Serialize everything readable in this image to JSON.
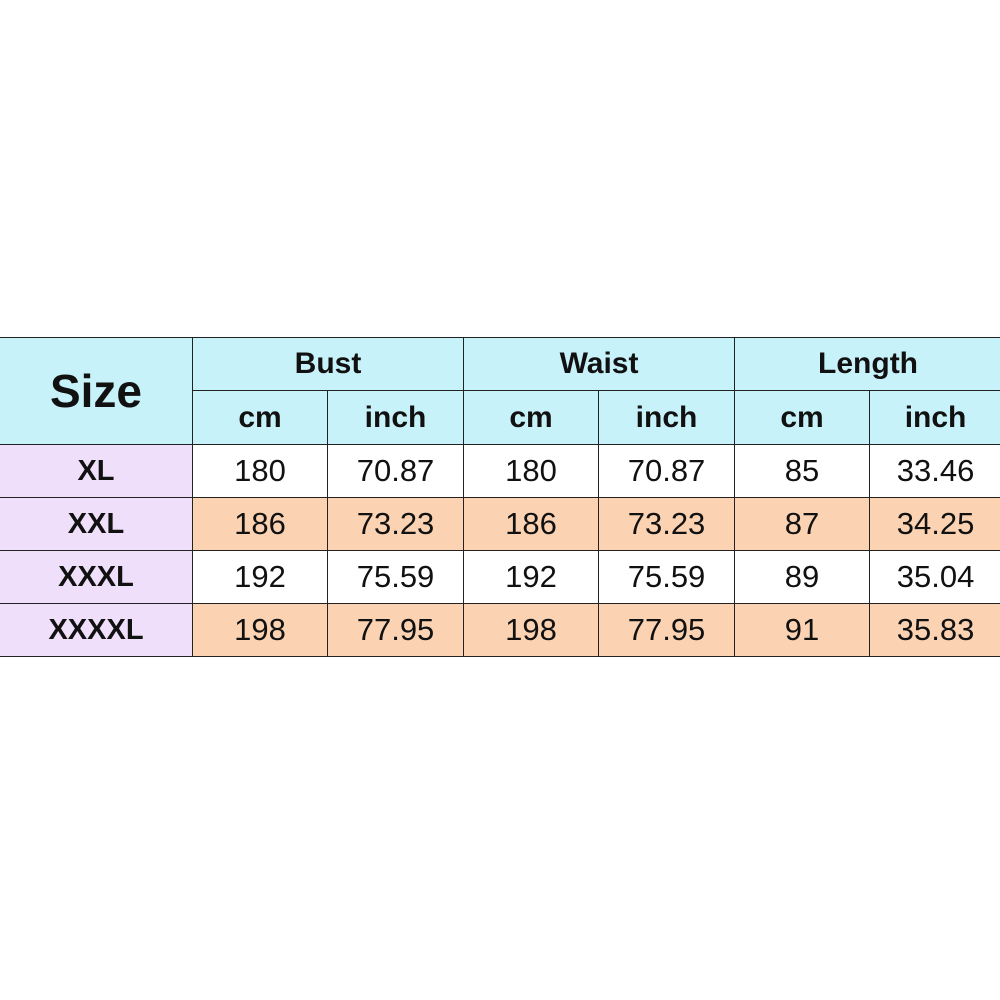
{
  "table": {
    "size_header": "Size",
    "groups": [
      "Bust",
      "Waist",
      "Length"
    ],
    "units": [
      "cm",
      "inch",
      "cm",
      "inch",
      "cm",
      "inch"
    ],
    "rows": [
      {
        "size": "XL",
        "values": [
          "180",
          "70.87",
          "180",
          "70.87",
          "85",
          "33.46"
        ]
      },
      {
        "size": "XXL",
        "values": [
          "186",
          "73.23",
          "186",
          "73.23",
          "87",
          "34.25"
        ]
      },
      {
        "size": "XXXL",
        "values": [
          "192",
          "75.59",
          "192",
          "75.59",
          "89",
          "35.04"
        ]
      },
      {
        "size": "XXXXL",
        "values": [
          "198",
          "77.95",
          "198",
          "77.95",
          "91",
          "35.83"
        ]
      }
    ],
    "colors": {
      "header": "#c8f2fa",
      "size_column": "#efdffb",
      "alt_row": "#fbd3b3",
      "row": "#ffffff"
    }
  }
}
